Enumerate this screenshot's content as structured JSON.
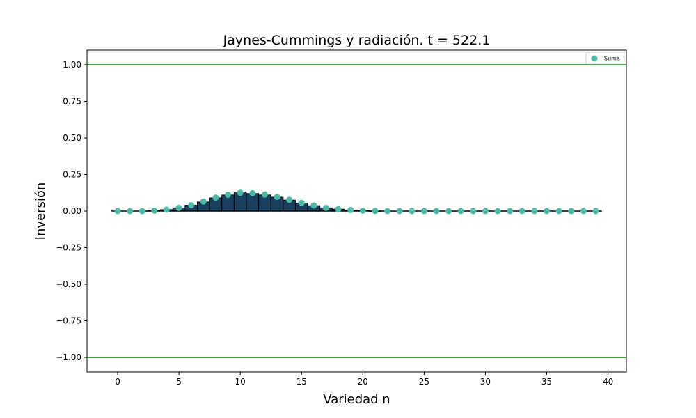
{
  "chart_data": {
    "type": "bar",
    "title": "Jaynes-Cummings y radiación. t = 522.1",
    "xlabel": "Variedad n",
    "ylabel": "Inversión",
    "xlim": [
      -2.5,
      41.5
    ],
    "ylim": [
      -1.1,
      1.1
    ],
    "x_ticks": [
      0,
      5,
      10,
      15,
      20,
      25,
      30,
      35,
      40
    ],
    "x_tick_labels": [
      "0",
      "5",
      "10",
      "15",
      "20",
      "25",
      "30",
      "35",
      "40"
    ],
    "y_ticks": [
      1.0,
      0.75,
      0.5,
      0.25,
      0.0,
      -0.25,
      -0.5,
      -0.75,
      -1.0
    ],
    "y_tick_labels": [
      "1.00",
      "0.75",
      "0.50",
      "0.25",
      "0.00",
      "−0.25",
      "−0.50",
      "−0.75",
      "−1.00"
    ],
    "hlines": [
      {
        "y": 1.0,
        "color": "#008000"
      },
      {
        "y": -1.0,
        "color": "#008000"
      }
    ],
    "baseline": {
      "y": 0.0,
      "x_range": [
        -0.5,
        39.5
      ],
      "color": "#000000"
    },
    "bar_color": "#1b3f5e",
    "scatter_color": "#4dbaa6",
    "x": [
      0,
      1,
      2,
      3,
      4,
      5,
      6,
      7,
      8,
      9,
      10,
      11,
      12,
      13,
      14,
      15,
      16,
      17,
      18,
      19,
      20,
      21,
      22,
      23,
      24,
      25,
      26,
      27,
      28,
      29,
      30,
      31,
      32,
      33,
      34,
      35,
      36,
      37,
      38,
      39
    ],
    "bars": [
      0,
      0,
      0,
      0.003,
      0.01,
      0.022,
      0.04,
      0.062,
      0.09,
      0.11,
      0.125,
      0.12,
      0.11,
      0.095,
      0.075,
      0.055,
      0.037,
      0.022,
      0.013,
      0.006,
      0.003,
      0.001,
      0,
      0,
      0,
      0,
      0,
      0,
      0,
      0,
      0,
      0,
      0,
      0,
      0,
      0,
      0,
      0,
      0,
      0
    ],
    "series": [
      {
        "name": "Suma",
        "type": "scatter",
        "values": [
          0,
          0,
          0,
          0.003,
          0.01,
          0.022,
          0.04,
          0.065,
          0.092,
          0.112,
          0.125,
          0.122,
          0.113,
          0.097,
          0.077,
          0.056,
          0.038,
          0.022,
          0.013,
          0.007,
          0.003,
          0.001,
          0,
          0,
          0,
          0,
          0,
          0,
          0,
          0,
          0,
          0,
          0,
          0,
          0,
          0,
          0,
          0,
          0,
          0
        ]
      }
    ],
    "legend": {
      "entries": [
        "Suma"
      ],
      "placement": "top-right"
    },
    "grid": false
  }
}
